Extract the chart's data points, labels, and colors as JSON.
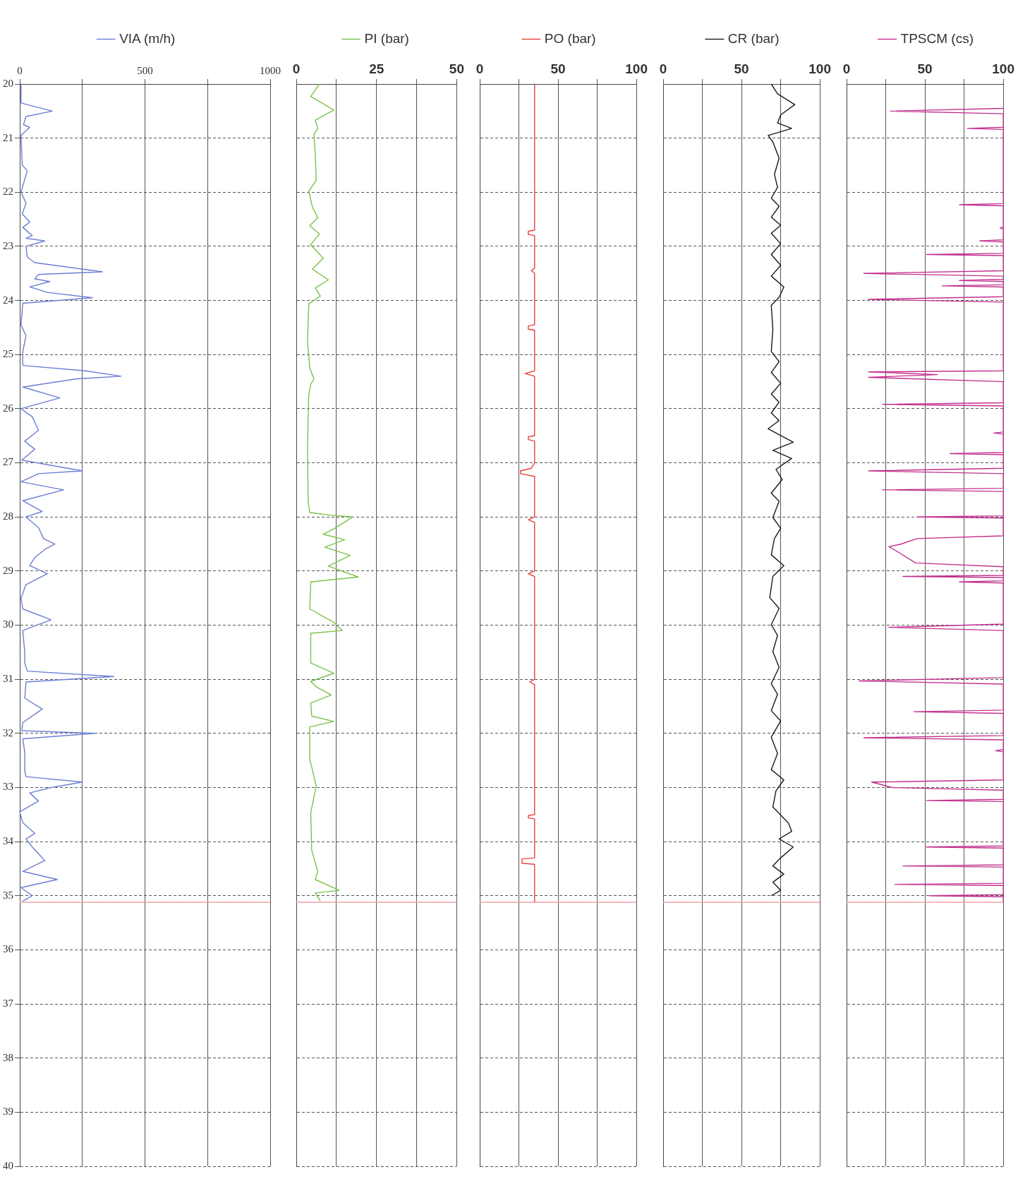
{
  "chart_data": [
    {
      "type": "line",
      "orientation": "horizontal",
      "legend": "top",
      "grid": true,
      "xlim": [
        0,
        1000
      ],
      "xticks": [
        0,
        {
          "value": 250,
          "label": null
        },
        500,
        {
          "value": 750,
          "label": null
        },
        1000
      ],
      "ylim": [
        40,
        20
      ],
      "yticks": [
        20,
        21,
        22,
        23,
        24,
        25,
        26,
        27,
        28,
        29,
        30,
        31,
        32,
        33,
        34,
        35,
        36,
        37,
        38,
        39,
        40
      ],
      "ref_lines": [
        {
          "axis": "y",
          "value": 35.12,
          "color": "#f4a0a8"
        }
      ],
      "series": [
        {
          "name": "VIA (m/h)",
          "color": "#6b7fd6",
          "x": [
            20,
            20.35,
            20.5,
            20.6,
            20.75,
            20.8,
            20.95,
            21.5,
            21.6,
            22,
            22.2,
            22.4,
            22.55,
            22.65,
            22.8,
            22.85,
            22.9,
            23,
            23.2,
            23.3,
            23.47,
            23.52,
            23.6,
            23.65,
            23.75,
            23.85,
            23.95,
            24.05,
            24.45,
            24.65,
            24.95,
            25.2,
            25.3,
            25.4,
            25.45,
            25.6,
            25.8,
            26,
            26.15,
            26.4,
            26.6,
            26.75,
            26.95,
            27.15,
            27.2,
            27.35,
            27.5,
            27.7,
            27.9,
            28,
            28.2,
            28.4,
            28.5,
            28.6,
            28.75,
            28.9,
            29.05,
            29.25,
            29.5,
            29.7,
            29.9,
            30.1,
            30.5,
            30.7,
            30.85,
            30.95,
            31.05,
            31.35,
            31.55,
            31.8,
            31.95,
            32,
            32.1,
            32.35,
            32.7,
            32.8,
            32.9,
            33,
            33.1,
            33.25,
            33.45,
            33.65,
            33.85,
            33.95,
            34.1,
            34.35,
            34.55,
            34.7,
            34.85,
            35,
            35.1
          ],
          "values": [
            5,
            5,
            130,
            25,
            15,
            40,
            5,
            10,
            30,
            5,
            25,
            10,
            40,
            12,
            50,
            25,
            100,
            25,
            30,
            60,
            330,
            75,
            60,
            120,
            40,
            110,
            290,
            12,
            5,
            25,
            12,
            12,
            260,
            405,
            225,
            12,
            160,
            5,
            50,
            75,
            20,
            60,
            8,
            250,
            75,
            5,
            175,
            12,
            90,
            25,
            75,
            95,
            140,
            100,
            60,
            40,
            110,
            25,
            5,
            12,
            125,
            12,
            20,
            20,
            30,
            375,
            25,
            20,
            90,
            12,
            8,
            300,
            12,
            20,
            20,
            25,
            250,
            125,
            40,
            75,
            0,
            12,
            60,
            25,
            50,
            100,
            12,
            150,
            5,
            50,
            12
          ]
        }
      ]
    },
    {
      "type": "line",
      "orientation": "horizontal",
      "legend": "top",
      "grid": true,
      "tick_labels": "x",
      "xlim": [
        0,
        50
      ],
      "xticks": [
        0,
        {
          "value": 12.5,
          "label": null
        },
        25,
        {
          "value": 37.5,
          "label": null
        },
        50
      ],
      "ylim": [
        40,
        20
      ],
      "yticks": [
        20,
        21,
        22,
        23,
        24,
        25,
        26,
        27,
        28,
        29,
        30,
        31,
        32,
        33,
        34,
        35,
        36,
        37,
        38,
        39,
        40
      ],
      "ref_lines": [
        {
          "axis": "y",
          "value": 35.12,
          "color": "#f4a0a8"
        }
      ],
      "series": [
        {
          "name": "PI (bar)",
          "color": "#7cc24a",
          "x": [
            20,
            20.23,
            20.48,
            20.67,
            20.82,
            20.93,
            21.28,
            21.78,
            21.98,
            22.27,
            22.47,
            22.62,
            22.77,
            22.97,
            23.22,
            23.42,
            23.62,
            23.77,
            23.92,
            24.06,
            24.75,
            25.25,
            25.45,
            25.55,
            25.75,
            26.14,
            26.73,
            27.72,
            27.92,
            27.97,
            28,
            28.22,
            28.32,
            28.42,
            28.56,
            28.71,
            28.91,
            29.11,
            29.2,
            29.7,
            29.95,
            30.1,
            30.15,
            30.7,
            30.89,
            31.04,
            31.14,
            31.29,
            31.44,
            31.68,
            31.78,
            31.88,
            32.48,
            32.67,
            32.97,
            33.47,
            34.16,
            34.55,
            34.7,
            34.9,
            34.95,
            35.1
          ],
          "values": [
            7.2,
            4.5,
            11.7,
            5.9,
            6.7,
            5.5,
            5.9,
            6.2,
            3.9,
            5,
            6.7,
            4.2,
            7.2,
            4.5,
            8.4,
            5,
            10,
            5.9,
            7.5,
            3.9,
            3.5,
            4.2,
            5.5,
            4.5,
            3.9,
            3.7,
            3.5,
            3.7,
            4.2,
            10.9,
            17.6,
            11.7,
            8.4,
            15.1,
            8.9,
            16.8,
            10,
            19.3,
            4.5,
            4.2,
            11.7,
            14.3,
            4.5,
            4.5,
            11.7,
            4.5,
            6.2,
            10.9,
            4.5,
            4.8,
            11.7,
            4.2,
            4.2,
            5,
            6.2,
            4.5,
            4.8,
            6.7,
            5.9,
            13.4,
            5.9,
            7.5
          ]
        }
      ]
    },
    {
      "type": "line",
      "orientation": "horizontal",
      "legend": "top",
      "grid": true,
      "tick_labels": "x",
      "xlim": [
        0,
        100
      ],
      "xticks": [
        0,
        {
          "value": 25,
          "label": null
        },
        50,
        {
          "value": 75,
          "label": null
        },
        100
      ],
      "ylim": [
        40,
        20
      ],
      "yticks": [
        20,
        21,
        22,
        23,
        24,
        25,
        26,
        27,
        28,
        29,
        30,
        31,
        32,
        33,
        34,
        35,
        36,
        37,
        38,
        39,
        40
      ],
      "ref_lines": [
        {
          "axis": "y",
          "value": 35.12,
          "color": "#f4a0a8"
        }
      ],
      "series": [
        {
          "name": "PO (bar)",
          "color": "#e8423c",
          "x": [
            20,
            22.7,
            22.72,
            22.78,
            22.8,
            23.4,
            23.45,
            23.5,
            24.45,
            24.47,
            24.53,
            24.55,
            25.3,
            25.35,
            25.4,
            26,
            26.5,
            26.52,
            26.57,
            26.6,
            27,
            27.1,
            27.15,
            27.2,
            27.25,
            28,
            28.05,
            28.1,
            29,
            29.05,
            29.1,
            30,
            31,
            31.05,
            31.1,
            33.5,
            33.52,
            33.56,
            33.58,
            34.3,
            34.32,
            34.4,
            34.42,
            35.12
          ],
          "values": [
            35,
            35,
            31,
            31,
            35,
            35,
            33,
            35,
            35,
            31,
            31,
            35,
            35,
            29,
            35,
            35,
            35,
            31,
            31,
            35,
            35,
            33,
            26,
            26,
            35,
            35,
            31,
            35,
            35,
            31,
            35,
            35,
            35,
            32,
            35,
            35,
            31,
            31,
            35,
            35,
            27,
            27,
            35,
            35
          ]
        }
      ]
    },
    {
      "type": "line",
      "orientation": "horizontal",
      "legend": "top",
      "grid": true,
      "tick_labels": "x",
      "xlim": [
        0,
        100
      ],
      "xticks": [
        0,
        {
          "value": 25,
          "label": null
        },
        50,
        {
          "value": 75,
          "label": null
        },
        100
      ],
      "ylim": [
        40,
        20
      ],
      "yticks": [
        20,
        21,
        22,
        23,
        24,
        25,
        26,
        27,
        28,
        29,
        30,
        31,
        32,
        33,
        34,
        35,
        36,
        37,
        38,
        39,
        40
      ],
      "ref_lines": [
        {
          "axis": "y",
          "value": 35.12,
          "color": "#f4a0a8"
        }
      ],
      "series": [
        {
          "name": "CR (bar)",
          "color": "#1a1a1a",
          "x": [
            20,
            20.18,
            20.38,
            20.57,
            20.72,
            20.82,
            20.95,
            21.07,
            21.37,
            21.67,
            21.91,
            22.11,
            22.26,
            22.46,
            22.61,
            22.76,
            22.95,
            23.15,
            23.35,
            23.55,
            23.75,
            23.94,
            24.09,
            24.54,
            24.94,
            25.13,
            25.33,
            25.53,
            25.73,
            25.88,
            26.08,
            26.22,
            26.37,
            26.62,
            26.77,
            26.92,
            27.12,
            27.31,
            27.56,
            27.71,
            28.01,
            28.21,
            28.4,
            28.7,
            28.9,
            29.1,
            29.49,
            29.69,
            29.99,
            30.19,
            30.49,
            30.78,
            31.08,
            31.28,
            31.58,
            31.77,
            32.07,
            32.37,
            32.67,
            32.86,
            33.06,
            33.36,
            33.66,
            33.81,
            33.95,
            34.1,
            34.3,
            34.45,
            34.6,
            34.75,
            34.9,
            35
          ],
          "values": [
            69,
            73,
            84,
            75,
            73,
            82,
            67,
            70,
            74,
            71,
            73,
            69,
            74,
            69,
            75,
            69,
            75,
            69,
            75,
            69,
            77,
            74,
            69,
            70,
            69,
            74,
            69,
            75,
            69,
            74,
            69,
            74,
            67,
            83,
            70,
            82,
            72,
            76,
            69,
            74,
            70,
            75,
            71,
            69,
            77,
            70,
            68,
            74,
            69,
            73,
            70,
            74,
            69,
            73,
            69,
            75,
            69,
            73,
            69,
            77,
            72,
            70,
            80,
            82,
            74,
            83,
            75,
            70,
            77,
            70,
            75,
            69
          ]
        }
      ]
    },
    {
      "type": "line",
      "orientation": "horizontal",
      "legend": "top",
      "grid": true,
      "tick_labels": "x",
      "xlim": [
        0,
        100
      ],
      "xticks": [
        0,
        {
          "value": 25,
          "label": null
        },
        50,
        {
          "value": 75,
          "label": null
        },
        100
      ],
      "ylim": [
        40,
        20
      ],
      "yticks": [
        20,
        21,
        22,
        23,
        24,
        25,
        26,
        27,
        28,
        29,
        30,
        31,
        32,
        33,
        34,
        35,
        36,
        37,
        38,
        39,
        40
      ],
      "ref_lines": [
        {
          "axis": "y",
          "value": 35.12,
          "color": "#f4a0a8"
        }
      ],
      "series": [
        {
          "name": "TPSCM (cs)",
          "color": "#c2308e",
          "x": [
            20.45,
            20.5,
            20.55,
            20.8,
            20.82,
            20.84,
            22.21,
            22.23,
            22.25,
            22.64,
            22.66,
            22.68,
            22.88,
            22.9,
            22.92,
            23.13,
            23.15,
            23.17,
            23.45,
            23.5,
            23.55,
            23.61,
            23.63,
            23.65,
            23.71,
            23.73,
            23.75,
            23.93,
            23.98,
            24.03,
            25.3,
            25.32,
            25.37,
            25.42,
            25.5,
            25.89,
            25.92,
            25.95,
            26.43,
            26.45,
            26.47,
            26.81,
            26.83,
            26.85,
            27.1,
            27.15,
            27.2,
            27.47,
            27.5,
            27.53,
            27.98,
            28,
            28.02,
            28.35,
            28.4,
            28.5,
            28.55,
            28.65,
            28.85,
            28.92,
            29.08,
            29.1,
            29.12,
            29.18,
            29.2,
            29.22,
            29.98,
            30.04,
            30.1,
            30.97,
            31.03,
            31.09,
            31.57,
            31.6,
            31.63,
            32.04,
            32.08,
            32.12,
            32.3,
            32.32,
            32.34,
            32.86,
            32.9,
            33,
            33.05,
            33.22,
            33.24,
            33.26,
            34.08,
            34.1,
            34.12,
            34.43,
            34.45,
            34.47,
            34.77,
            34.79,
            34.81,
            34.98,
            35,
            35.02,
            35.1
          ],
          "values": [
            100,
            28,
            100,
            100,
            77,
            100,
            100,
            72,
            100,
            100,
            98,
            100,
            100,
            85,
            100,
            100,
            51,
            100,
            100,
            11,
            100,
            100,
            72,
            100,
            100,
            61,
            100,
            100,
            14,
            100,
            100,
            14,
            58,
            14,
            100,
            100,
            23,
            100,
            100,
            94,
            100,
            100,
            66,
            100,
            100,
            14,
            100,
            100,
            23,
            100,
            100,
            45,
            100,
            100,
            45,
            35,
            27,
            33,
            44,
            100,
            100,
            36,
            100,
            100,
            72,
            100,
            100,
            27,
            100,
            100,
            8,
            100,
            100,
            43,
            100,
            100,
            11,
            100,
            100,
            95,
            100,
            100,
            16,
            29,
            100,
            100,
            51,
            100,
            100,
            51,
            100,
            100,
            36,
            100,
            100,
            31,
            100,
            100,
            53,
            100,
            100
          ]
        }
      ]
    }
  ]
}
